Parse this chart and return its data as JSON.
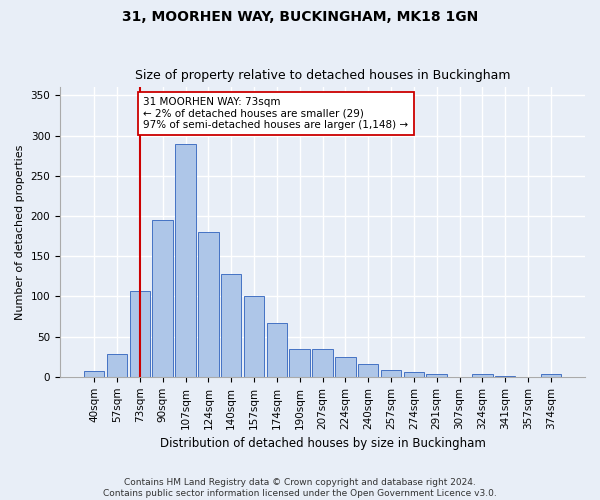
{
  "title": "31, MOORHEN WAY, BUCKINGHAM, MK18 1GN",
  "subtitle": "Size of property relative to detached houses in Buckingham",
  "xlabel": "Distribution of detached houses by size in Buckingham",
  "ylabel": "Number of detached properties",
  "footer_line1": "Contains HM Land Registry data © Crown copyright and database right 2024.",
  "footer_line2": "Contains public sector information licensed under the Open Government Licence v3.0.",
  "categories": [
    "40sqm",
    "57sqm",
    "73sqm",
    "90sqm",
    "107sqm",
    "124sqm",
    "140sqm",
    "157sqm",
    "174sqm",
    "190sqm",
    "207sqm",
    "224sqm",
    "240sqm",
    "257sqm",
    "274sqm",
    "291sqm",
    "307sqm",
    "324sqm",
    "341sqm",
    "357sqm",
    "374sqm"
  ],
  "values": [
    7,
    28,
    107,
    195,
    290,
    180,
    128,
    100,
    67,
    35,
    35,
    25,
    16,
    8,
    6,
    4,
    0,
    3,
    1,
    0,
    3
  ],
  "bar_color": "#aec6e8",
  "bar_edge_color": "#4472c4",
  "vline_x_index": 2,
  "vline_color": "#cc0000",
  "annotation_text_line1": "31 MOORHEN WAY: 73sqm",
  "annotation_text_line2": "← 2% of detached houses are smaller (29)",
  "annotation_text_line3": "97% of semi-detached houses are larger (1,148) →",
  "annotation_box_color": "#ffffff",
  "annotation_box_edge": "#cc0000",
  "ylim": [
    0,
    360
  ],
  "yticks": [
    0,
    50,
    100,
    150,
    200,
    250,
    300,
    350
  ],
  "bg_color": "#e8eef7",
  "plot_bg": "#e8eef7",
  "grid_color": "#ffffff",
  "title_fontsize": 10,
  "subtitle_fontsize": 9,
  "xlabel_fontsize": 8.5,
  "ylabel_fontsize": 8,
  "tick_fontsize": 7.5,
  "footer_fontsize": 6.5
}
